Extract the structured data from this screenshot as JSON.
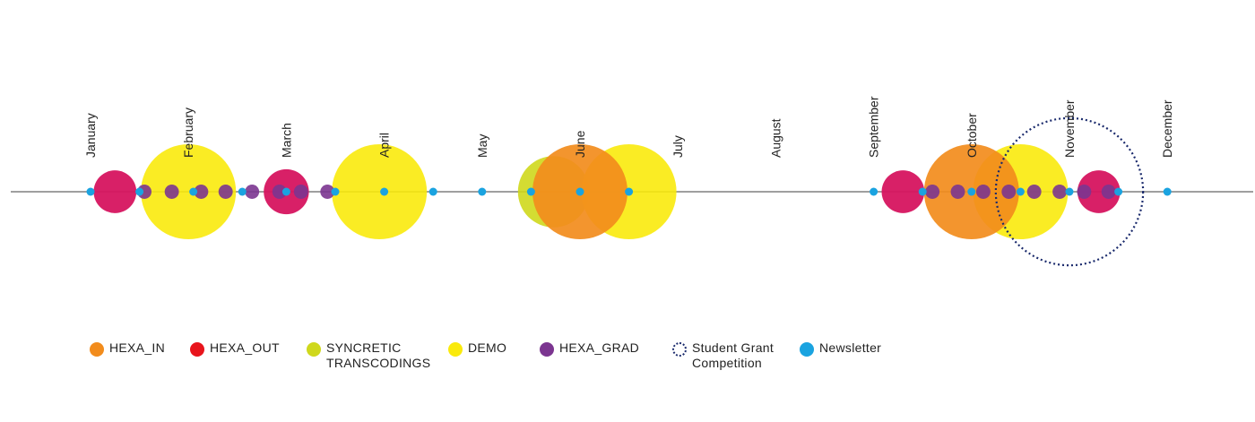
{
  "chart_data": {
    "type": "scatter",
    "title": "",
    "months": [
      "January",
      "February",
      "March",
      "April",
      "May",
      "June",
      "July",
      "August",
      "September",
      "October",
      "November",
      "December"
    ],
    "colors": {
      "HEXA_IN": "#f28c1c",
      "HEXA_OUT": "#e8141c",
      "SYNCRETIC TRANSCODINGS": "#cfd81c",
      "DEMO": "#faea0c",
      "HEXA_GRAD": "#7b3590",
      "Student Grant Competition": "#1a2a6c",
      "Newsletter": "#1aa3e0",
      "HEXA_OVERLAP": "#d6145f"
    },
    "events": [
      {
        "category": "HEXA_OUT",
        "month": 1.25,
        "size": 0.9
      },
      {
        "category": "DEMO",
        "month": 2.0,
        "size": 2.0
      },
      {
        "category": "SYNCRETIC TRANSCODINGS",
        "month": 5.73,
        "size": 1.5
      },
      {
        "category": "DEMO",
        "month": 3.95,
        "size": 2.0
      },
      {
        "category": "HEXA_OUT",
        "month": 3.0,
        "size": 0.95
      },
      {
        "category": "HEXA_IN",
        "month": 6.0,
        "size": 2.0
      },
      {
        "category": "DEMO",
        "month": 6.5,
        "size": 2.0
      },
      {
        "category": "HEXA_OUT",
        "month": 9.3,
        "size": 0.9
      },
      {
        "category": "DEMO",
        "month": 10.5,
        "size": 2.0
      },
      {
        "category": "HEXA_IN",
        "month": 10.0,
        "size": 2.0
      },
      {
        "category": "HEXA_OUT",
        "month": 11.3,
        "size": 0.9
      },
      {
        "category": "Student Grant Competition",
        "month": 11.0,
        "size": 3.1
      },
      {
        "category": "HEXA_GRAD",
        "month": 1.55,
        "size": 0.3
      },
      {
        "category": "HEXA_GRAD",
        "month": 1.83,
        "size": 0.3
      },
      {
        "category": "HEXA_GRAD",
        "month": 2.13,
        "size": 0.3
      },
      {
        "category": "HEXA_GRAD",
        "month": 2.38,
        "size": 0.3
      },
      {
        "category": "HEXA_GRAD",
        "month": 2.65,
        "size": 0.3
      },
      {
        "category": "HEXA_GRAD",
        "month": 2.93,
        "size": 0.3
      },
      {
        "category": "HEXA_GRAD",
        "month": 3.15,
        "size": 0.3
      },
      {
        "category": "HEXA_GRAD",
        "month": 3.42,
        "size": 0.3
      },
      {
        "category": "HEXA_GRAD",
        "month": 9.6,
        "size": 0.3
      },
      {
        "category": "HEXA_GRAD",
        "month": 9.86,
        "size": 0.3
      },
      {
        "category": "HEXA_GRAD",
        "month": 10.12,
        "size": 0.3
      },
      {
        "category": "HEXA_GRAD",
        "month": 10.38,
        "size": 0.3
      },
      {
        "category": "HEXA_GRAD",
        "month": 10.64,
        "size": 0.3
      },
      {
        "category": "HEXA_GRAD",
        "month": 10.9,
        "size": 0.3
      },
      {
        "category": "HEXA_GRAD",
        "month": 11.15,
        "size": 0.3
      },
      {
        "category": "HEXA_GRAD",
        "month": 11.4,
        "size": 0.3
      },
      {
        "category": "Newsletter",
        "month": 1.0,
        "size": 0.16
      },
      {
        "category": "Newsletter",
        "month": 1.5,
        "size": 0.16
      },
      {
        "category": "Newsletter",
        "month": 2.05,
        "size": 0.16
      },
      {
        "category": "Newsletter",
        "month": 2.55,
        "size": 0.16
      },
      {
        "category": "Newsletter",
        "month": 3.0,
        "size": 0.16
      },
      {
        "category": "Newsletter",
        "month": 3.5,
        "size": 0.16
      },
      {
        "category": "Newsletter",
        "month": 4.0,
        "size": 0.16
      },
      {
        "category": "Newsletter",
        "month": 4.5,
        "size": 0.16
      },
      {
        "category": "Newsletter",
        "month": 5.0,
        "size": 0.16
      },
      {
        "category": "Newsletter",
        "month": 5.5,
        "size": 0.16
      },
      {
        "category": "Newsletter",
        "month": 6.0,
        "size": 0.16
      },
      {
        "category": "Newsletter",
        "month": 6.5,
        "size": 0.16
      },
      {
        "category": "Newsletter",
        "month": 9.0,
        "size": 0.16
      },
      {
        "category": "Newsletter",
        "month": 9.5,
        "size": 0.16
      },
      {
        "category": "Newsletter",
        "month": 10.0,
        "size": 0.16
      },
      {
        "category": "Newsletter",
        "month": 10.5,
        "size": 0.16
      },
      {
        "category": "Newsletter",
        "month": 11.0,
        "size": 0.16
      },
      {
        "category": "Newsletter",
        "month": 11.5,
        "size": 0.16
      },
      {
        "category": "Newsletter",
        "month": 12.0,
        "size": 0.16
      }
    ],
    "legend": [
      {
        "label": "HEXA_IN",
        "category": "HEXA_IN"
      },
      {
        "label": "HEXA_OUT",
        "category": "HEXA_OUT"
      },
      {
        "label": "SYNCRETIC\nTRANSCODINGS",
        "category": "SYNCRETIC TRANSCODINGS"
      },
      {
        "label": "DEMO",
        "category": "DEMO"
      },
      {
        "label": "HEXA_GRAD",
        "category": "HEXA_GRAD"
      },
      {
        "label": "Student Grant\nCompetition",
        "category": "Student Grant Competition"
      },
      {
        "label": "Newsletter",
        "category": "Newsletter"
      }
    ],
    "legend_position": "bottom"
  }
}
